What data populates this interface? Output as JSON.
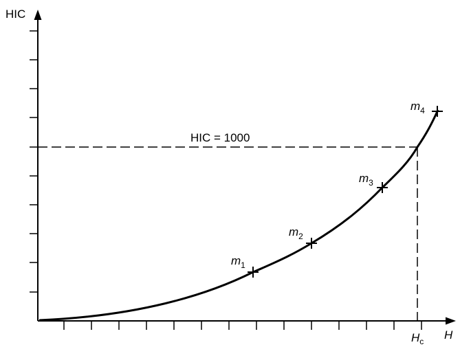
{
  "y_axis_label": "HIC",
  "x_axis_label": "H",
  "threshold_label": "HIC = 1000",
  "hc_label": {
    "main": "H",
    "sub": "c"
  },
  "points": [
    {
      "main": "m",
      "sub": "1"
    },
    {
      "main": "m",
      "sub": "2"
    },
    {
      "main": "m",
      "sub": "3"
    },
    {
      "main": "m",
      "sub": "4"
    }
  ]
}
